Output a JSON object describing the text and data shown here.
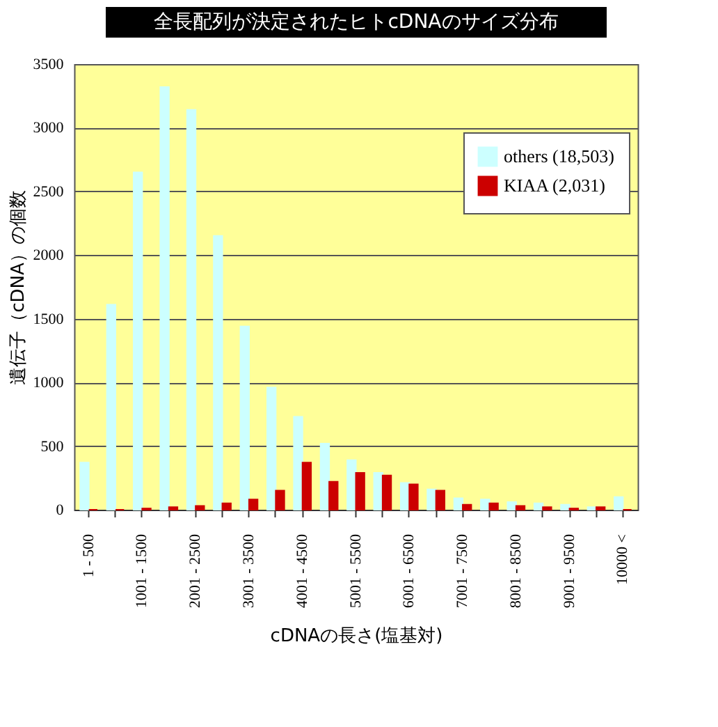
{
  "chart_data": {
    "type": "bar",
    "title": "全長配列が決定されたヒトcDNAのサイズ分布",
    "xlabel": "cDNAの長さ(塩基対)",
    "ylabel": "遺伝子（cDNA）の個数",
    "categories": [
      "1 - 500",
      null,
      "1001 - 1500",
      null,
      "2001 - 2500",
      null,
      "3001 - 3500",
      null,
      "4001 - 4500",
      null,
      "5001 - 5500",
      null,
      "6001 - 6500",
      null,
      "7001 - 7500",
      null,
      "8001 - 8500",
      null,
      "9001 - 9500",
      null,
      "10000 <"
    ],
    "series": [
      {
        "name": "others (18,503)",
        "color": "#ccffff",
        "values": [
          370,
          1610,
          2650,
          3320,
          3140,
          2150,
          1440,
          960,
          730,
          520,
          390,
          290,
          210,
          160,
          90,
          80,
          60,
          50,
          40,
          20,
          100
        ]
      },
      {
        "name": "KIAA (2,031)",
        "color": "#cc0000",
        "values": [
          0,
          0,
          10,
          20,
          30,
          50,
          80,
          150,
          370,
          220,
          290,
          270,
          200,
          150,
          40,
          50,
          30,
          20,
          10,
          20,
          0
        ]
      }
    ],
    "ylim": [
      0,
      3500
    ],
    "yticks": [
      0,
      500,
      1000,
      1500,
      2000,
      2500,
      3000,
      3500
    ],
    "grid": "y",
    "legend": "top right"
  }
}
